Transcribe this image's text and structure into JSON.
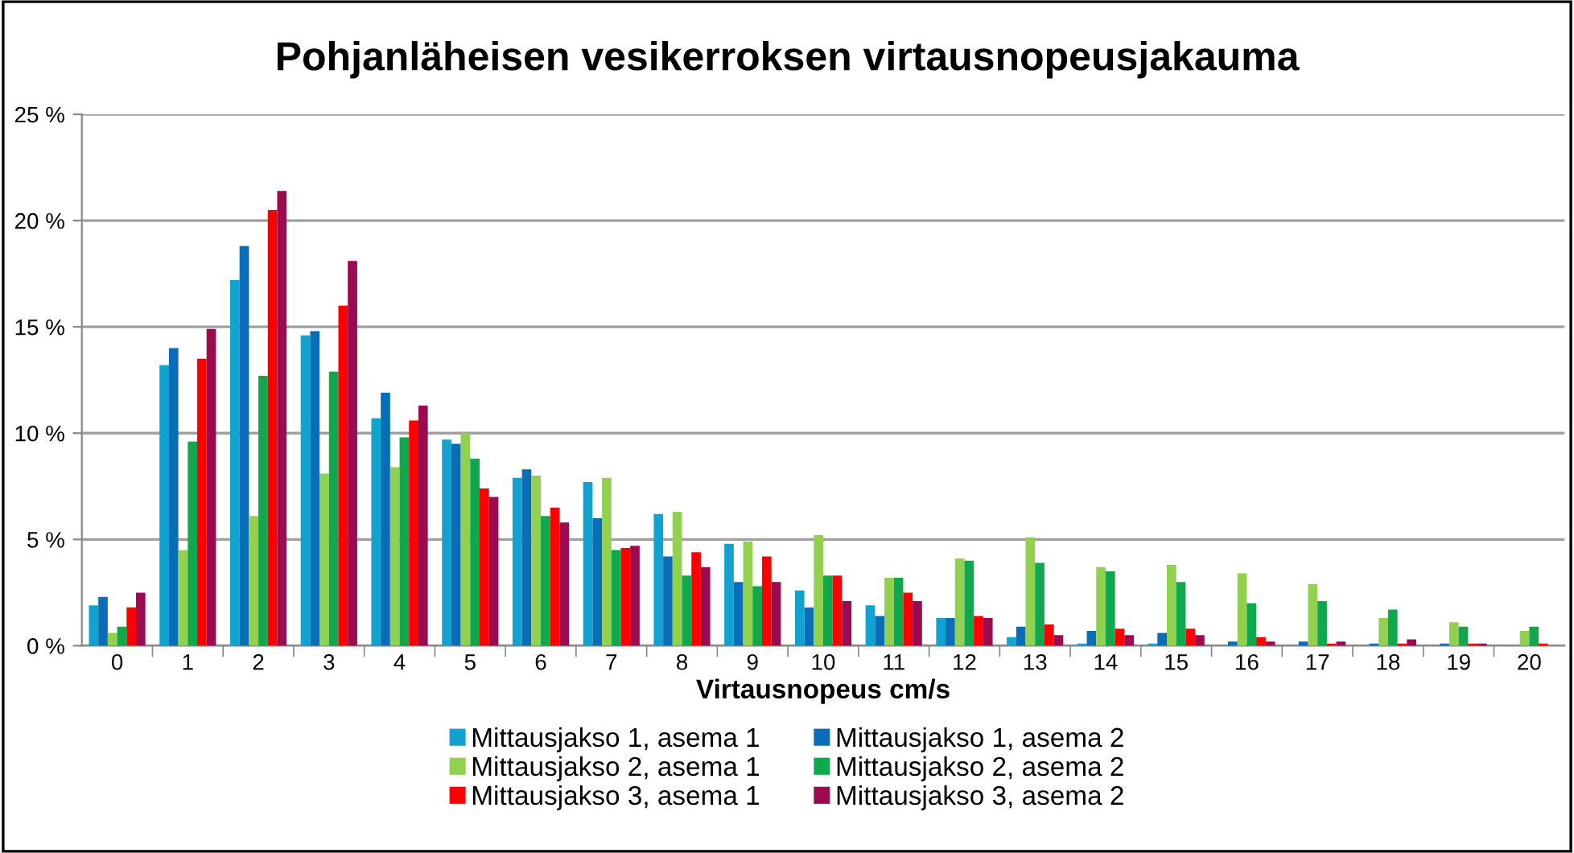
{
  "chart_data": {
    "type": "bar",
    "title": "Pohjanläheisen vesikerroksen virtausnopeusjakauma",
    "xlabel": "Virtausnopeus cm/s",
    "categories": [
      "0",
      "1",
      "2",
      "3",
      "4",
      "5",
      "6",
      "7",
      "8",
      "9",
      "10",
      "11",
      "12",
      "13",
      "14",
      "15",
      "16",
      "17",
      "18",
      "19",
      "20"
    ],
    "series": [
      {
        "name": "Mittausjakso 1, asema 1",
        "color": "#12a2cf",
        "values": [
          1.9,
          13.2,
          17.2,
          14.6,
          10.7,
          9.7,
          7.9,
          7.7,
          6.2,
          4.8,
          2.6,
          1.9,
          1.3,
          0.4,
          0.1,
          0.1,
          0.0,
          0.0,
          0.0,
          0.0,
          0.0
        ]
      },
      {
        "name": "Mittausjakso 1, asema 2",
        "color": "#0a6db8",
        "values": [
          2.3,
          14.0,
          18.8,
          14.8,
          11.9,
          9.5,
          8.3,
          6.0,
          4.2,
          3.0,
          1.8,
          1.4,
          1.3,
          0.9,
          0.7,
          0.6,
          0.2,
          0.2,
          0.1,
          0.1,
          0.0
        ]
      },
      {
        "name": "Mittausjakso 2, asema 1",
        "color": "#92d050",
        "values": [
          0.6,
          4.5,
          6.1,
          8.1,
          8.4,
          10.0,
          8.0,
          7.9,
          6.3,
          4.9,
          5.2,
          3.2,
          4.1,
          5.1,
          3.7,
          3.8,
          3.4,
          2.9,
          1.3,
          1.1,
          0.7
        ]
      },
      {
        "name": "Mittausjakso 2, asema 2",
        "color": "#10a84c",
        "values": [
          0.9,
          9.6,
          12.7,
          12.9,
          9.8,
          8.8,
          6.1,
          4.5,
          3.3,
          2.8,
          3.3,
          3.2,
          4.0,
          3.9,
          3.5,
          3.0,
          2.0,
          2.1,
          1.7,
          0.9,
          0.9
        ]
      },
      {
        "name": "Mittausjakso 3, asema 1",
        "color": "#ff0000",
        "values": [
          1.8,
          13.5,
          20.5,
          16.0,
          10.6,
          7.4,
          6.5,
          4.6,
          4.4,
          4.2,
          3.3,
          2.5,
          1.4,
          1.0,
          0.8,
          0.8,
          0.4,
          0.1,
          0.1,
          0.1,
          0.1
        ]
      },
      {
        "name": "Mittausjakso 3, asema 2",
        "color": "#9c0b4f",
        "values": [
          2.5,
          14.9,
          21.4,
          18.1,
          11.3,
          7.0,
          5.8,
          4.7,
          3.7,
          3.0,
          2.1,
          2.1,
          1.3,
          0.5,
          0.5,
          0.5,
          0.2,
          0.2,
          0.3,
          0.1,
          0.0
        ]
      }
    ],
    "ylim": [
      0,
      25
    ],
    "yticks": [
      {
        "value": 0,
        "label": "0 %"
      },
      {
        "value": 5,
        "label": "5 %"
      },
      {
        "value": 10,
        "label": "10 %"
      },
      {
        "value": 15,
        "label": "15 %"
      },
      {
        "value": 20,
        "label": "20 %"
      },
      {
        "value": 25,
        "label": "25 %"
      }
    ],
    "grid": "y",
    "legend": "bottom"
  }
}
